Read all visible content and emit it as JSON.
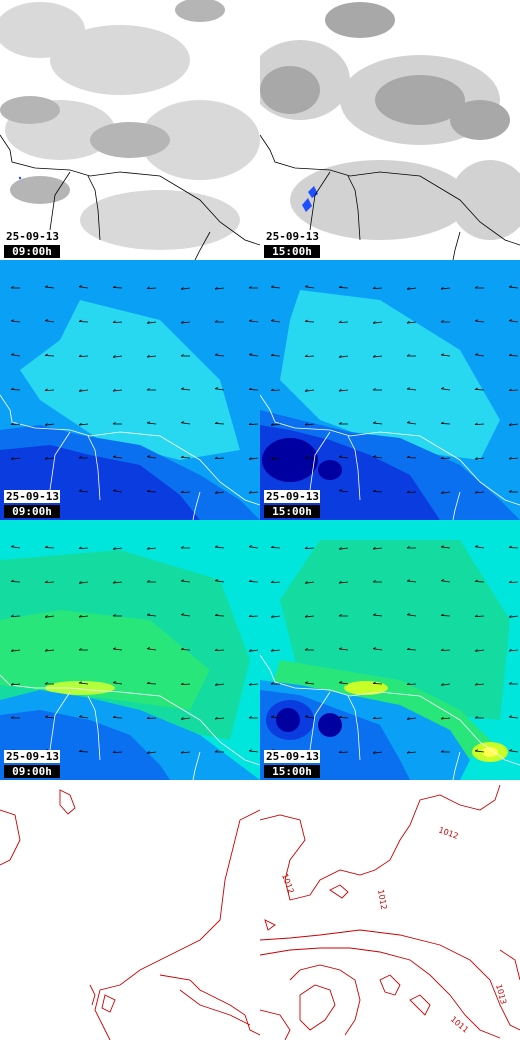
{
  "panels": {
    "cloud_0900": {
      "date": "25-09-13",
      "time": "09:00h"
    },
    "cloud_1500": {
      "date": "25-09-13",
      "time": "15:00h"
    },
    "wind_0900": {
      "date": "25-09-13",
      "time": "09:00h"
    },
    "wind_1500": {
      "date": "25-09-13",
      "time": "15:00h"
    },
    "temp_0900": {
      "date": "25-09-13",
      "time": "09:00h"
    },
    "temp_1500": {
      "date": "25-09-13",
      "time": "15:00h"
    }
  },
  "isobars": {
    "labels": [
      "1012",
      "1012",
      "1012",
      "1013",
      "1011"
    ]
  },
  "colors": {
    "cloud_light": "#e6e6e6",
    "cloud_dark": "#a8a8a8",
    "rain": "#1e50ff",
    "wind_base": "#0aa0f5",
    "wind_light": "#28d7f0",
    "wind_dark": "#0a3ce0",
    "wind_darkest": "#0000a0",
    "temp_base": "#00e6dc",
    "temp_green": "#14dca0",
    "temp_yellow": "#c8ff28",
    "isobar": "#cc0000",
    "coastline": "#000000"
  },
  "icons": [
    "wind-arrow-icon"
  ]
}
